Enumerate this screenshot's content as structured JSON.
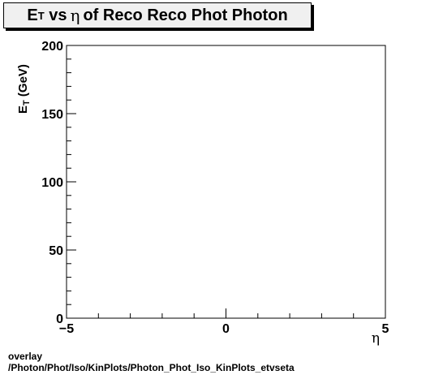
{
  "title": {
    "main": "E",
    "sub": "T",
    "vs": "vs",
    "greek": "η",
    "rest": "of Reco Reco Phot Photon"
  },
  "chart_data": {
    "type": "scatter",
    "x_axis": {
      "label": "η",
      "range": [
        -5,
        5
      ],
      "major_ticks": [
        -5,
        0,
        5
      ],
      "tick_labels": [
        "−5",
        "0",
        "5"
      ]
    },
    "y_axis": {
      "label_main": "E",
      "label_sub": "T",
      "label_unit": "(GeV)",
      "range": [
        0,
        200
      ],
      "major_ticks": [
        0,
        50,
        100,
        150,
        200
      ],
      "tick_labels": [
        "0",
        "50",
        "100",
        "150",
        "200"
      ]
    },
    "series": [],
    "grid": false
  },
  "footer": {
    "line1": "overlay",
    "line2": "/Photon/Phot/Iso/KinPlots/Photon_Phot_Iso_KinPlots_etvseta"
  }
}
